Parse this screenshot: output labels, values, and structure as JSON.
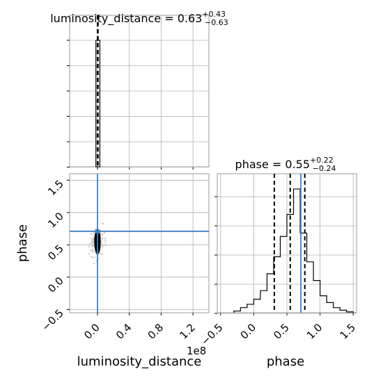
{
  "chart_data": [
    {
      "type": "histogram",
      "panel": "luminosity_distance-marginal",
      "title": {
        "param": "luminosity_distance",
        "median": "0.63",
        "plus": "+0.43",
        "minus": "−0.63"
      },
      "xlim": [
        -0.35,
        1.4
      ],
      "bins": [
        -0.02,
        0.03
      ],
      "counts": [
        1.0
      ],
      "quantiles": [
        0.0,
        0.0063
      ],
      "x_ticks": [
        0.0,
        0.4,
        0.8,
        1.2
      ]
    },
    {
      "type": "scatter",
      "panel": "luminosity_distance-vs-phase",
      "xlabel": "luminosity_distance",
      "ylabel": "phase",
      "x_scale_label": "1e8",
      "xlim": [
        -0.35,
        1.4
      ],
      "ylim": [
        -0.55,
        1.6
      ],
      "x_ticks": [
        0.0,
        0.4,
        0.8,
        1.2
      ],
      "x_tick_labels": [
        "0.0",
        "0.4",
        "0.8",
        "1.2"
      ],
      "y_ticks": [
        -0.5,
        0.0,
        0.5,
        1.0,
        1.5
      ],
      "y_tick_labels": [
        "−0.5",
        "0.0",
        "0.5",
        "1.0",
        "1.5"
      ],
      "density_center": [
        0.0,
        0.55
      ],
      "density_widths": [
        0.07,
        0.22
      ],
      "truth": {
        "x": 0.0,
        "y": 0.71
      }
    },
    {
      "type": "histogram",
      "panel": "phase-marginal",
      "title": {
        "param": "phase",
        "median": "0.55",
        "plus": "+0.22",
        "minus": "−0.24"
      },
      "xlabel": "phase",
      "xlim": [
        -0.55,
        1.55
      ],
      "x_ticks": [
        -0.5,
        0.0,
        0.5,
        1.0,
        1.5
      ],
      "x_tick_labels": [
        "−0.5",
        "0.0",
        "0.5",
        "1.0",
        "1.5"
      ],
      "bin_edges": [
        -0.3,
        -0.2,
        -0.1,
        0.0,
        0.1,
        0.2,
        0.3,
        0.4,
        0.5,
        0.6,
        0.7,
        0.8,
        0.9,
        1.0,
        1.1,
        1.2,
        1.3,
        1.4,
        1.5
      ],
      "counts": [
        0.01,
        0.03,
        0.05,
        0.08,
        0.13,
        0.23,
        0.33,
        0.45,
        0.58,
        0.73,
        0.47,
        0.3,
        0.19,
        0.1,
        0.06,
        0.03,
        0.015,
        0.005
      ],
      "ymax": 0.82,
      "quantiles": [
        0.31,
        0.55,
        0.77
      ],
      "truth": 0.71
    }
  ]
}
